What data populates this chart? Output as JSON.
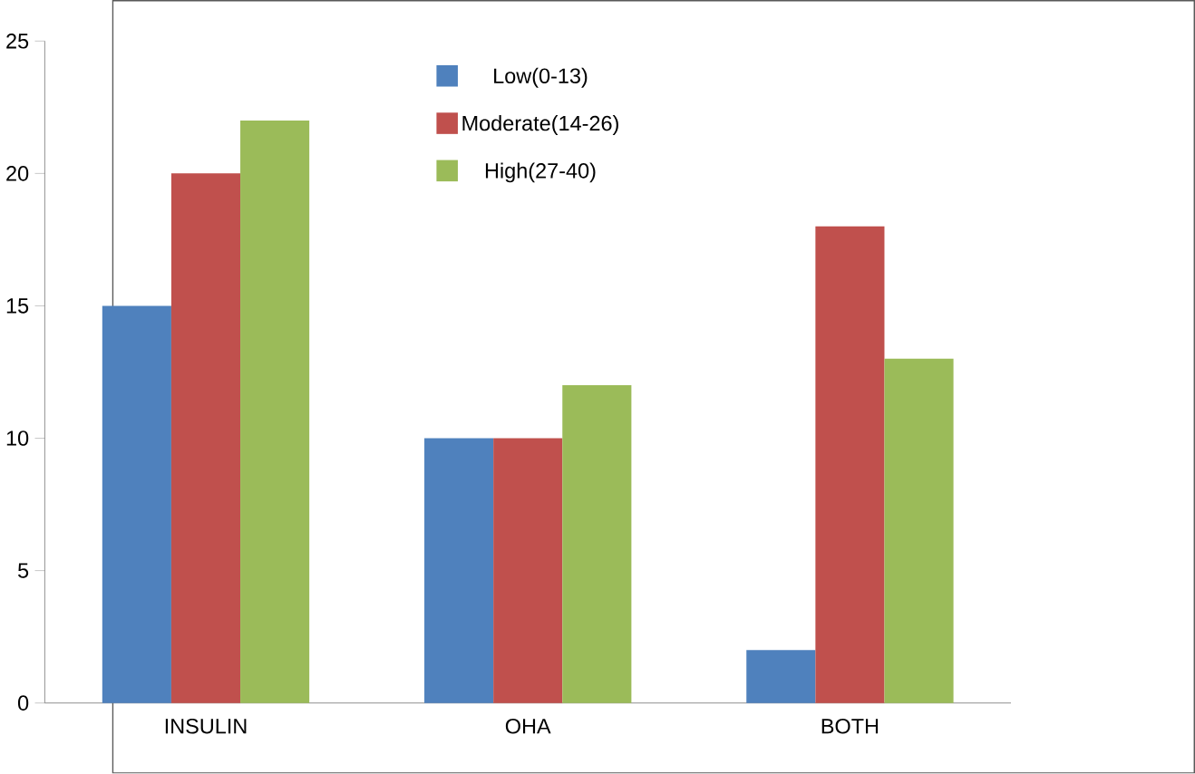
{
  "chart_data": {
    "type": "bar",
    "categories": [
      "INSULIN",
      "OHA",
      "BOTH"
    ],
    "series": [
      {
        "name": "Low(0-13)",
        "color": "#4f81bd",
        "values": [
          15,
          10,
          2
        ]
      },
      {
        "name": "Moderate(14-26)",
        "color": "#c0504d",
        "values": [
          20,
          10,
          18
        ]
      },
      {
        "name": "High(27-40)",
        "color": "#9bbb59",
        "values": [
          22,
          12,
          13
        ]
      }
    ],
    "ylim": [
      0,
      25
    ],
    "yticks": [
      0,
      5,
      10,
      15,
      20,
      25
    ],
    "legend": "top",
    "grid": false
  }
}
